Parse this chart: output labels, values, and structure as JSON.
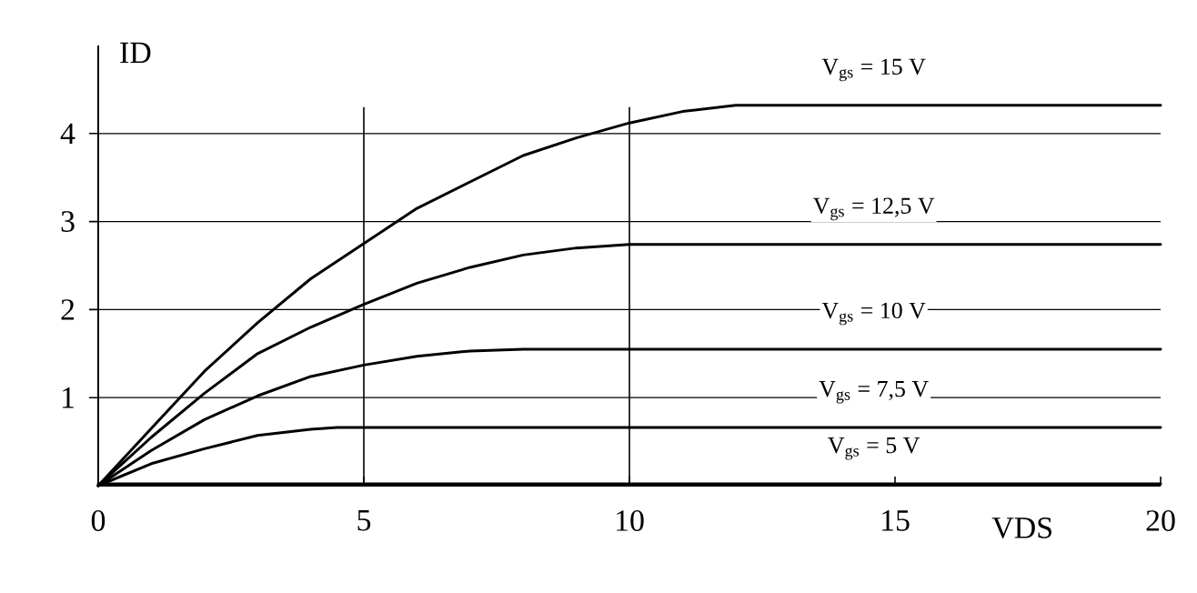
{
  "chart_data": {
    "type": "line",
    "xlabel": "VDS",
    "ylabel": "ID",
    "xlim": [
      0,
      20
    ],
    "ylim": [
      0,
      5
    ],
    "xticks": [
      0,
      5,
      10,
      15,
      20
    ],
    "yticks": [
      1,
      2,
      3,
      4
    ],
    "grid": "y",
    "marker": "none",
    "line_style": "solid",
    "ref_lines": [
      {
        "axis": "x",
        "value": 5,
        "color": "#000000"
      },
      {
        "axis": "x",
        "value": 10,
        "color": "#000000"
      }
    ],
    "series": [
      {
        "name": "V$_{gs}$ = 15 V",
        "color": "#000000",
        "x": [
          0,
          1,
          2,
          3,
          4,
          5,
          6,
          7,
          8,
          9,
          10,
          11,
          12,
          20
        ],
        "values": [
          0,
          0.65,
          1.3,
          1.85,
          2.35,
          2.75,
          3.15,
          3.45,
          3.75,
          3.95,
          4.12,
          4.25,
          4.32,
          4.32
        ]
      },
      {
        "name": "V$_{gs}$ = 12,5 V",
        "color": "#000000",
        "x": [
          0,
          1,
          2,
          3,
          4,
          5,
          6,
          7,
          8,
          9,
          10,
          20
        ],
        "values": [
          0,
          0.55,
          1.05,
          1.5,
          1.8,
          2.06,
          2.3,
          2.48,
          2.62,
          2.7,
          2.74,
          2.74
        ]
      },
      {
        "name": "V$_{gs}$ = 10 V",
        "color": "#000000",
        "x": [
          0,
          1,
          2,
          3,
          4,
          5,
          6,
          7,
          8,
          20
        ],
        "values": [
          0,
          0.4,
          0.75,
          1.02,
          1.24,
          1.37,
          1.47,
          1.53,
          1.55,
          1.55
        ]
      },
      {
        "name": "V$_{gs}$ = 7,5 V",
        "color": "#000000",
        "x": [
          0,
          1,
          2,
          3,
          4,
          4.5,
          20
        ],
        "values": [
          0,
          0.25,
          0.42,
          0.57,
          0.64,
          0.66,
          0.66
        ]
      },
      {
        "name": "V$_{gs}$ = 5 V",
        "color": "#000000",
        "x": [
          0,
          20
        ],
        "values": [
          0.02,
          0.02
        ]
      }
    ]
  }
}
